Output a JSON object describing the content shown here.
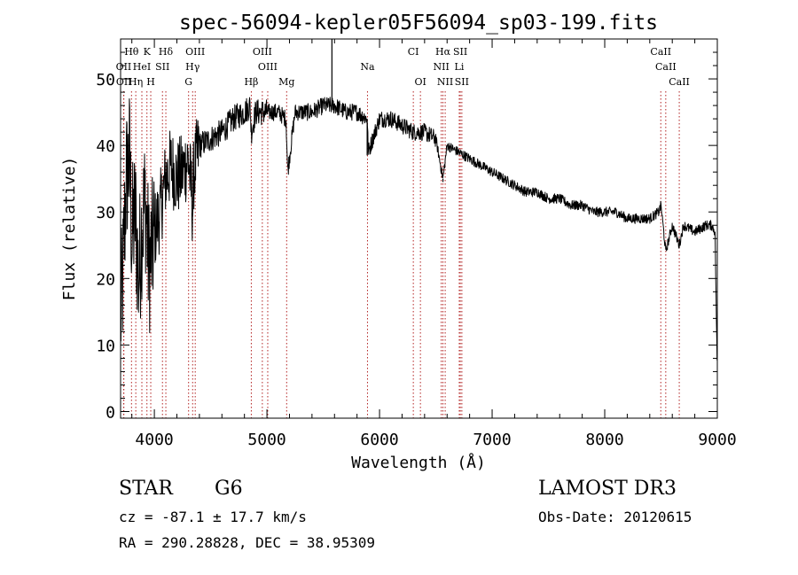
{
  "chart_data": {
    "type": "line",
    "title": "spec-56094-kepler05F56094_sp03-199.fits",
    "xlabel": "Wavelength (Å)",
    "ylabel": "Flux (relative)",
    "xlim": [
      3700,
      9000
    ],
    "ylim": [
      -1,
      56
    ],
    "x_ticks": [
      4000,
      5000,
      6000,
      7000,
      8000,
      9000
    ],
    "y_ticks": [
      0,
      10,
      20,
      30,
      40,
      50
    ],
    "x_tick_labels": [
      "4000",
      "5000",
      "6000",
      "7000",
      "8000",
      "9000"
    ],
    "y_tick_labels": [
      "0",
      "10",
      "20",
      "30",
      "40",
      "50"
    ],
    "line_color": "#000000",
    "marker_color": "#b22222",
    "spectrum_anchors": {
      "wavelength": [
        3700,
        3720,
        3750,
        3780,
        3800,
        3830,
        3860,
        3890,
        3920,
        3950,
        3980,
        4000,
        4050,
        4100,
        4150,
        4200,
        4250,
        4300,
        4330,
        4340,
        4350,
        4400,
        4500,
        4600,
        4700,
        4800,
        4850,
        4861,
        4900,
        5000,
        5100,
        5170,
        5184,
        5250,
        5400,
        5500,
        5600,
        5700,
        5800,
        5890,
        5900,
        6000,
        6100,
        6200,
        6300,
        6400,
        6500,
        6563,
        6600,
        6700,
        6800,
        6900,
        7000,
        7100,
        7200,
        7300,
        7400,
        7500,
        7600,
        7700,
        7800,
        7900,
        8000,
        8100,
        8200,
        8300,
        8400,
        8480,
        8500,
        8542,
        8600,
        8662,
        8700,
        8800,
        8900,
        8950,
        8980,
        9000
      ],
      "flux": [
        14,
        20,
        35,
        38,
        26,
        30,
        20,
        28,
        32,
        22,
        24,
        27,
        30,
        35,
        37,
        35,
        36,
        38,
        33,
        30,
        36,
        40,
        41,
        42,
        44,
        45,
        46,
        42,
        45,
        45,
        45,
        44,
        36,
        45,
        45,
        46,
        46,
        45,
        45,
        44,
        39,
        44,
        44,
        43,
        42,
        42,
        41,
        35,
        40,
        39,
        38,
        37,
        36,
        35,
        34,
        33,
        33,
        32,
        32,
        31,
        31,
        30,
        30,
        30,
        29,
        29,
        29,
        30,
        31,
        24,
        28,
        25,
        28,
        27,
        28,
        28,
        27,
        5
      ]
    },
    "spikes": [
      {
        "wavelength": 5577,
        "flux": 58
      },
      {
        "wavelength": 5890,
        "flux": 38.5
      },
      {
        "wavelength": 6563,
        "flux": 34.5
      }
    ],
    "line_markers": [
      {
        "label": "Hθ",
        "wavelength": 3797,
        "row": 0
      },
      {
        "label": "K",
        "wavelength": 3934,
        "row": 0
      },
      {
        "label": "Hδ",
        "wavelength": 4102,
        "row": 0
      },
      {
        "label": "OIII",
        "wavelength": 4363,
        "row": 0
      },
      {
        "label": "OIII",
        "wavelength": 4959,
        "row": 0
      },
      {
        "label": "CI",
        "wavelength": 6300,
        "row": 0
      },
      {
        "label": "Hα",
        "wavelength": 6563,
        "row": 0
      },
      {
        "label": "SII",
        "wavelength": 6717,
        "row": 0
      },
      {
        "label": "CaII",
        "wavelength": 8498,
        "row": 0
      },
      {
        "label": "OII",
        "wavelength": 3727,
        "row": 1
      },
      {
        "label": "HeI",
        "wavelength": 3889,
        "row": 1
      },
      {
        "label": "SII",
        "wavelength": 4072,
        "row": 1
      },
      {
        "label": "Hγ",
        "wavelength": 4340,
        "row": 1
      },
      {
        "label": "OIII",
        "wavelength": 5007,
        "row": 1
      },
      {
        "label": "NII",
        "wavelength": 6548,
        "row": 1
      },
      {
        "label": "Li",
        "wavelength": 6708,
        "row": 1
      },
      {
        "label": "CaII",
        "wavelength": 8542,
        "row": 1
      },
      {
        "label": "OII",
        "wavelength": 3729,
        "row": 2
      },
      {
        "label": "Hη",
        "wavelength": 3835,
        "row": 2
      },
      {
        "label": "H",
        "wavelength": 3968,
        "row": 2
      },
      {
        "label": "G",
        "wavelength": 4304,
        "row": 2
      },
      {
        "label": "Hβ",
        "wavelength": 4861,
        "row": 2
      },
      {
        "label": "Mg",
        "wavelength": 5175,
        "row": 2
      },
      {
        "label": "Na",
        "wavelength": 5893,
        "row": 1
      },
      {
        "label": "OI",
        "wavelength": 6363,
        "row": 2
      },
      {
        "label": "NII",
        "wavelength": 6583,
        "row": 2
      },
      {
        "label": "SII",
        "wavelength": 6731,
        "row": 2
      },
      {
        "label": "CaII",
        "wavelength": 8662,
        "row": 2
      }
    ]
  },
  "info": {
    "object_class": "STAR",
    "subclass": "G6",
    "survey": "LAMOST DR3",
    "redshift": "cz = -87.1 ± 17.7 km/s",
    "obs_date": "Obs-Date: 20120615",
    "coords": "RA = 290.28828, DEC =  38.95309"
  }
}
